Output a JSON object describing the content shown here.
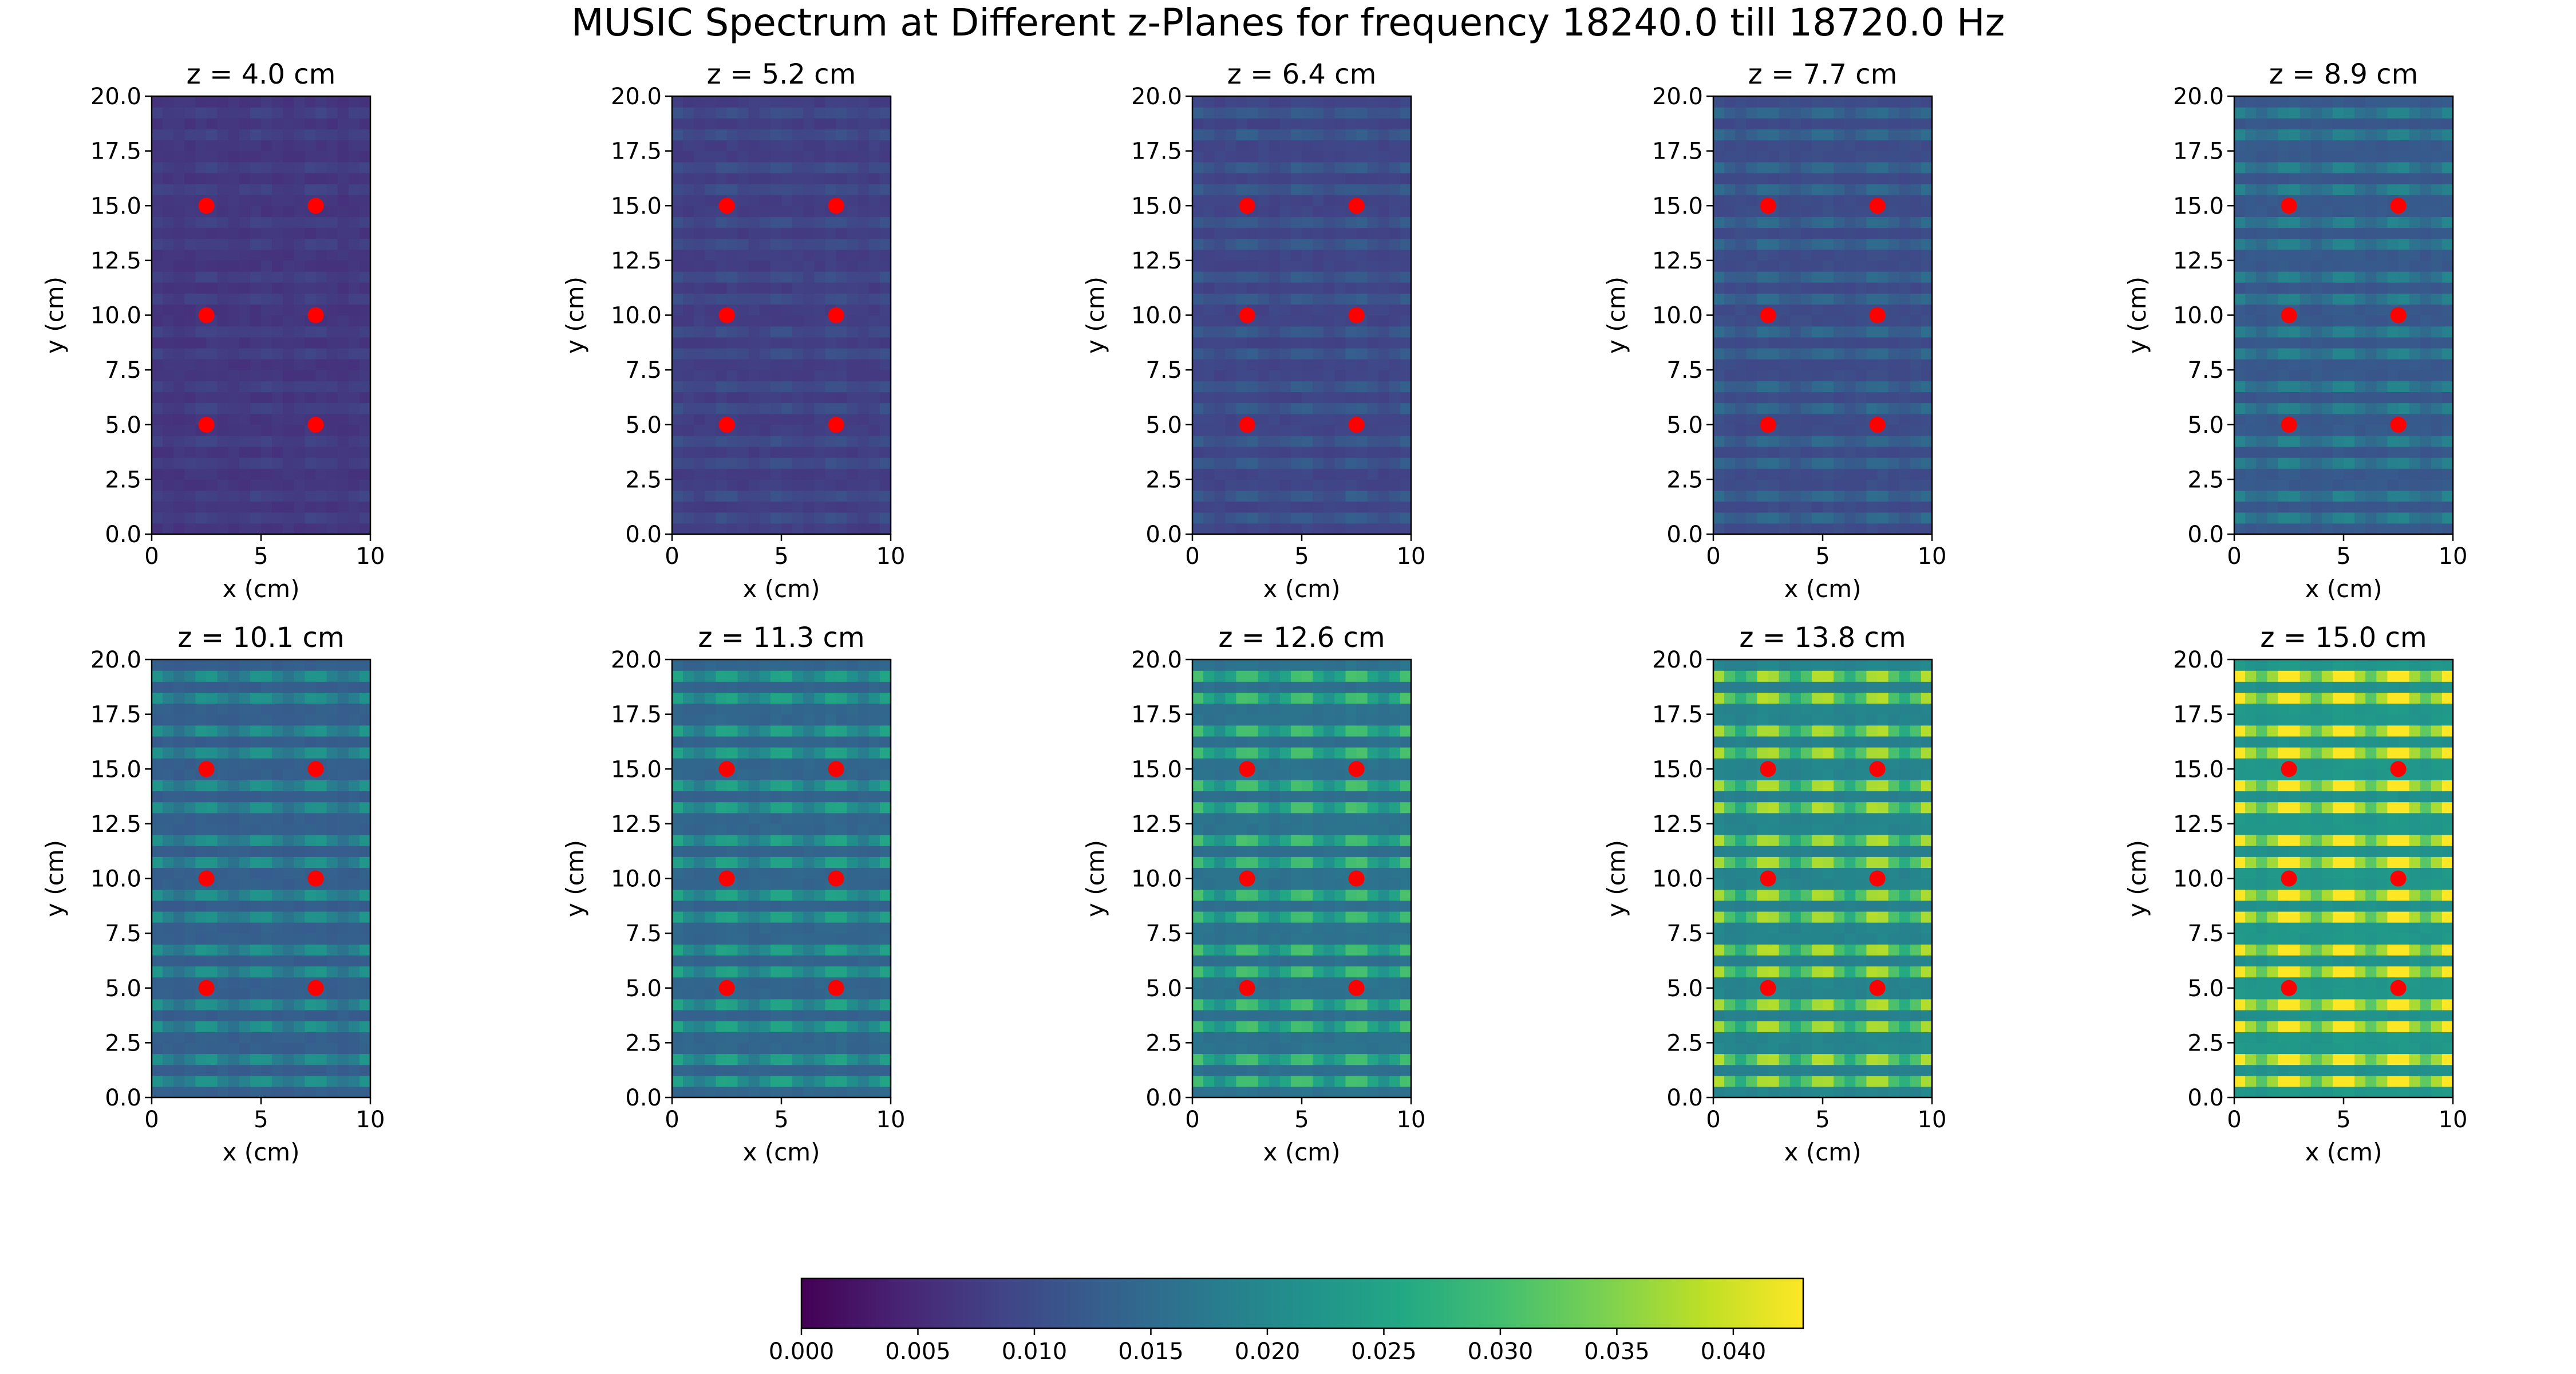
{
  "figure": {
    "title": "MUSIC Spectrum at Different z-Planes for frequency 18240.0 till 18720.0 Hz"
  },
  "chart_data": {
    "type": "heatmap",
    "title": "MUSIC Spectrum at Different z-Planes for frequency 18240.0 till 18720.0 Hz",
    "grid": false,
    "colormap": "viridis",
    "panels": [
      {
        "z_cm": 4.0,
        "title": "z = 4.0 cm",
        "mean_level": 0.006
      },
      {
        "z_cm": 5.2,
        "title": "z = 5.2 cm",
        "mean_level": 0.007
      },
      {
        "z_cm": 6.4,
        "title": "z = 6.4 cm",
        "mean_level": 0.008
      },
      {
        "z_cm": 7.7,
        "title": "z = 7.7 cm",
        "mean_level": 0.009
      },
      {
        "z_cm": 8.9,
        "title": "z = 8.9 cm",
        "mean_level": 0.011
      },
      {
        "z_cm": 10.1,
        "title": "z = 10.1 cm",
        "mean_level": 0.012
      },
      {
        "z_cm": 11.3,
        "title": "z = 11.3 cm",
        "mean_level": 0.013
      },
      {
        "z_cm": 12.6,
        "title": "z = 12.6 cm",
        "mean_level": 0.015
      },
      {
        "z_cm": 13.8,
        "title": "z = 13.8 cm",
        "mean_level": 0.018
      },
      {
        "z_cm": 15.0,
        "title": "z = 15.0 cm",
        "mean_level": 0.021
      }
    ],
    "xlabel": "x (cm)",
    "ylabel": "y (cm)",
    "xlim": [
      0,
      10
    ],
    "ylim": [
      0,
      20
    ],
    "x_ticks": [
      0,
      5,
      10
    ],
    "x_tick_labels": [
      "0",
      "5",
      "10"
    ],
    "y_ticks": [
      0,
      2.5,
      5,
      7.5,
      10,
      12.5,
      15,
      17.5,
      20
    ],
    "y_tick_labels": [
      "0.0",
      "2.5",
      "5.0",
      "7.5",
      "10.0",
      "12.5",
      "15.0",
      "17.5",
      "20.0"
    ],
    "markers": {
      "color": "#ff0000",
      "points": [
        [
          2.5,
          5
        ],
        [
          7.5,
          5
        ],
        [
          2.5,
          10
        ],
        [
          7.5,
          10
        ],
        [
          2.5,
          15
        ],
        [
          7.5,
          15
        ]
      ]
    },
    "colorbar": {
      "orientation": "horizontal",
      "range": [
        0,
        0.043
      ],
      "ticks": [
        0,
        0.005,
        0.01,
        0.015,
        0.02,
        0.025,
        0.03,
        0.035,
        0.04
      ],
      "tick_labels": [
        "0.000",
        "0.005",
        "0.010",
        "0.015",
        "0.020",
        "0.025",
        "0.030",
        "0.035",
        "0.040"
      ]
    }
  }
}
